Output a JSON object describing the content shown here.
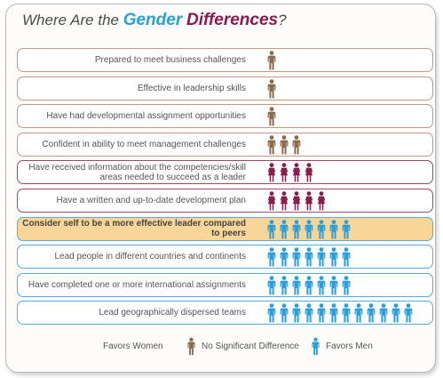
{
  "title": {
    "prefix": "Where Are the ",
    "gender": "Gender",
    "differences": "Differences",
    "suffix": "?"
  },
  "colors": {
    "women": "#8a1c4c",
    "nodiff": "#8b6b4e",
    "men": "#2a9fd8",
    "women_border": "#a04a63",
    "nodiff_border": "#bf9a8a",
    "men_border": "#5aaadc",
    "highlight_fill": "#f8d69a"
  },
  "chart_data": {
    "type": "table",
    "title": "Where Are the Gender Differences?",
    "rows": [
      {
        "label": "Prepared to meet business challenges",
        "favors": "No Significant Difference",
        "count": 1,
        "highlight": false
      },
      {
        "label": "Effective in leadership skills",
        "favors": "No Significant Difference",
        "count": 1,
        "highlight": false
      },
      {
        "label": "Have had developmental assignment opportunities",
        "favors": "No Significant Difference",
        "count": 1,
        "highlight": false
      },
      {
        "label": "Confident in ability to meet management challenges",
        "favors": "No Significant Difference",
        "count": 3,
        "highlight": false
      },
      {
        "label": "Have received information about the competencies/skill areas needed to succeed as a leader",
        "favors": "Favors Women",
        "count": 4,
        "highlight": false
      },
      {
        "label": "Have a written and up-to-date development plan",
        "favors": "Favors Women",
        "count": 5,
        "highlight": false
      },
      {
        "label": "Consider self to be a more effective leader compared to peers",
        "favors": "Favors Men",
        "count": 7,
        "highlight": true
      },
      {
        "label": "Lead people in different countries and continents",
        "favors": "Favors Men",
        "count": 7,
        "highlight": false
      },
      {
        "label": "Have completed one or more international assignments",
        "favors": "Favors Men",
        "count": 7,
        "highlight": false
      },
      {
        "label": "Lead geographically dispersed teams",
        "favors": "Favors Men",
        "count": 12,
        "highlight": false
      }
    ]
  },
  "legend": {
    "women_label": "Favors Women",
    "nodiff_label": "No Significant Difference",
    "men_label": "Favors Men"
  }
}
